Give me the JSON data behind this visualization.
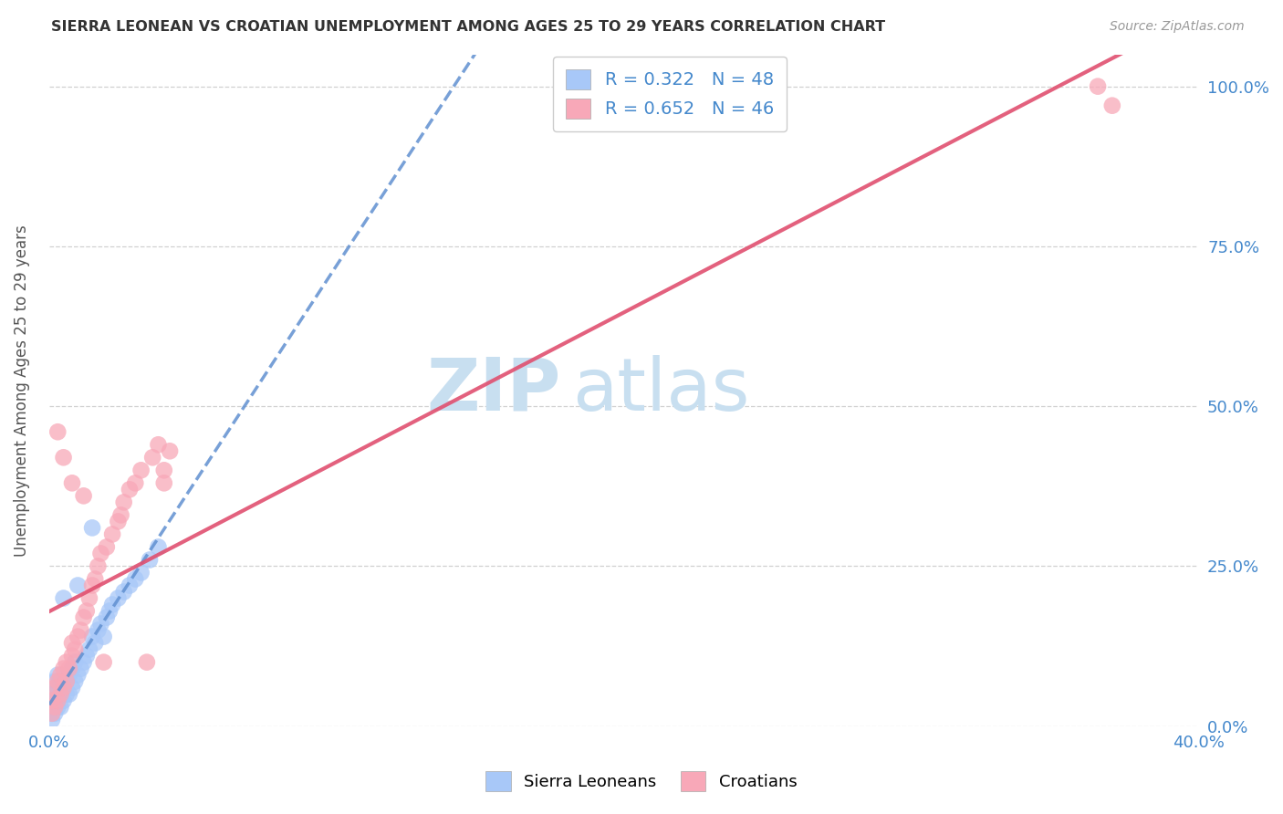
{
  "title": "SIERRA LEONEAN VS CROATIAN UNEMPLOYMENT AMONG AGES 25 TO 29 YEARS CORRELATION CHART",
  "source": "Source: ZipAtlas.com",
  "ylabel": "Unemployment Among Ages 25 to 29 years",
  "xlim": [
    0.0,
    0.4
  ],
  "ylim": [
    0.0,
    1.05
  ],
  "xticks": [
    0.0,
    0.1,
    0.2,
    0.3,
    0.4
  ],
  "yticks": [
    0.0,
    0.25,
    0.5,
    0.75,
    1.0
  ],
  "sierra_color": "#a8c8f8",
  "croatian_color": "#f8a8b8",
  "sierra_line_color": "#6090d0",
  "croatian_line_color": "#e05070",
  "sierra_R": 0.322,
  "sierra_N": 48,
  "croatian_R": 0.652,
  "croatian_N": 46,
  "watermark_zip": "ZIP",
  "watermark_atlas": "atlas",
  "watermark_color": "#c8dff0",
  "text_color": "#4488cc",
  "background_color": "#ffffff",
  "grid_color": "#cccccc",
  "sierra_x": [
    0.001,
    0.001,
    0.001,
    0.001,
    0.002,
    0.002,
    0.002,
    0.002,
    0.003,
    0.003,
    0.003,
    0.003,
    0.004,
    0.004,
    0.004,
    0.005,
    0.005,
    0.005,
    0.006,
    0.006,
    0.007,
    0.007,
    0.008,
    0.008,
    0.009,
    0.009,
    0.01,
    0.01,
    0.011,
    0.012,
    0.013,
    0.014,
    0.015,
    0.015,
    0.016,
    0.017,
    0.018,
    0.019,
    0.02,
    0.021,
    0.022,
    0.024,
    0.026,
    0.028,
    0.03,
    0.032,
    0.035,
    0.038
  ],
  "sierra_y": [
    0.01,
    0.02,
    0.03,
    0.04,
    0.02,
    0.03,
    0.05,
    0.07,
    0.03,
    0.04,
    0.06,
    0.08,
    0.03,
    0.05,
    0.07,
    0.04,
    0.06,
    0.2,
    0.05,
    0.07,
    0.05,
    0.08,
    0.06,
    0.09,
    0.07,
    0.1,
    0.08,
    0.22,
    0.09,
    0.1,
    0.11,
    0.12,
    0.14,
    0.31,
    0.13,
    0.15,
    0.16,
    0.14,
    0.17,
    0.18,
    0.19,
    0.2,
    0.21,
    0.22,
    0.23,
    0.24,
    0.26,
    0.28
  ],
  "croatian_x": [
    0.001,
    0.001,
    0.002,
    0.002,
    0.003,
    0.003,
    0.004,
    0.004,
    0.005,
    0.005,
    0.006,
    0.006,
    0.007,
    0.008,
    0.008,
    0.009,
    0.01,
    0.011,
    0.012,
    0.013,
    0.014,
    0.015,
    0.016,
    0.017,
    0.018,
    0.019,
    0.02,
    0.022,
    0.024,
    0.025,
    0.026,
    0.028,
    0.03,
    0.032,
    0.034,
    0.036,
    0.038,
    0.04,
    0.042,
    0.04,
    0.003,
    0.005,
    0.008,
    0.012,
    0.365,
    0.37
  ],
  "croatian_y": [
    0.02,
    0.04,
    0.03,
    0.06,
    0.04,
    0.07,
    0.05,
    0.08,
    0.06,
    0.09,
    0.07,
    0.1,
    0.09,
    0.11,
    0.13,
    0.12,
    0.14,
    0.15,
    0.17,
    0.18,
    0.2,
    0.22,
    0.23,
    0.25,
    0.27,
    0.1,
    0.28,
    0.3,
    0.32,
    0.33,
    0.35,
    0.37,
    0.38,
    0.4,
    0.1,
    0.42,
    0.44,
    0.4,
    0.43,
    0.38,
    0.46,
    0.42,
    0.38,
    0.36,
    1.0,
    0.97
  ]
}
